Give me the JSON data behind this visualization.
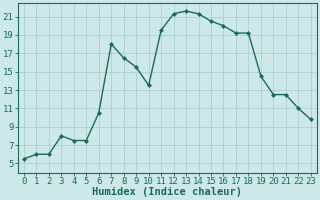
{
  "x": [
    0,
    1,
    2,
    3,
    4,
    5,
    6,
    7,
    8,
    9,
    10,
    11,
    12,
    13,
    14,
    15,
    16,
    17,
    18,
    19,
    20,
    21,
    22,
    23
  ],
  "y": [
    5.5,
    6.0,
    6.0,
    8.0,
    7.5,
    7.5,
    10.5,
    18.0,
    16.5,
    15.5,
    13.5,
    19.5,
    21.3,
    21.6,
    21.3,
    20.5,
    20.0,
    19.2,
    19.2,
    14.5,
    12.5,
    12.5,
    11.0,
    9.8
  ],
  "line_color": "#1a6b5a",
  "marker": "D",
  "marker_size": 2.0,
  "line_width": 1.0,
  "bg_color": "#cce8e8",
  "grid_color": "#aacccc",
  "xlabel": "Humidex (Indice chaleur)",
  "xlim": [
    -0.5,
    23.5
  ],
  "ylim": [
    4,
    22.5
  ],
  "yticks": [
    5,
    7,
    9,
    11,
    13,
    15,
    17,
    19,
    21
  ],
  "xtick_labels": [
    "0",
    "1",
    "2",
    "3",
    "4",
    "5",
    "6",
    "7",
    "8",
    "9",
    "10",
    "11",
    "12",
    "13",
    "14",
    "15",
    "16",
    "17",
    "18",
    "19",
    "20",
    "21",
    "22",
    "23"
  ],
  "xlabel_fontsize": 7.5,
  "tick_fontsize": 6.5,
  "tick_color": "#1a6b5a"
}
